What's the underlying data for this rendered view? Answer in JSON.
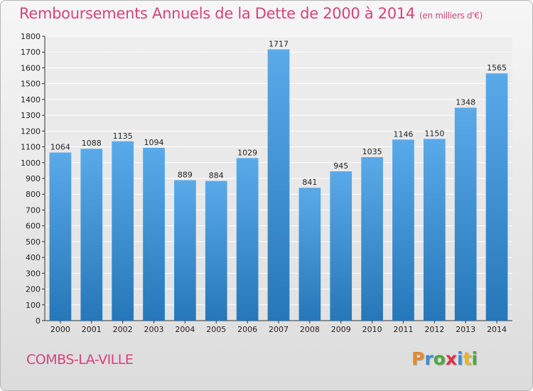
{
  "header": {
    "title": "Remboursements Annuels de la Dette de 2000 à 2014",
    "subtitle": "(en milliers d'€)"
  },
  "footer": {
    "city": "COMBS-LA-VILLE",
    "logo": "Proxiti"
  },
  "colors": {
    "accent": "#d6437a",
    "bar_light": "#5aaaea",
    "bar_dark": "#2677b9",
    "logo_letters": [
      "#e8892b",
      "#3a8fd6",
      "#4aa840",
      "#e0304a",
      "#3a8fd6",
      "#e8b52b",
      "#4aa840"
    ]
  },
  "chart_data": {
    "type": "bar",
    "title": "Remboursements Annuels de la Dette de 2000 à 2014",
    "subtitle": "(en milliers d'€)",
    "categories": [
      "2000",
      "2001",
      "2002",
      "2003",
      "2004",
      "2005",
      "2006",
      "2007",
      "2008",
      "2009",
      "2010",
      "2011",
      "2012",
      "2013",
      "2014"
    ],
    "values": [
      1064,
      1088,
      1135,
      1094,
      889,
      884,
      1029,
      1717,
      841,
      945,
      1035,
      1146,
      1150,
      1348,
      1565
    ],
    "ylim": [
      0,
      1800
    ],
    "yticks": [
      0,
      100,
      200,
      300,
      400,
      500,
      600,
      700,
      800,
      900,
      1000,
      1100,
      1200,
      1300,
      1400,
      1500,
      1600,
      1700,
      1800
    ],
    "grid": true,
    "data_labels": true
  }
}
